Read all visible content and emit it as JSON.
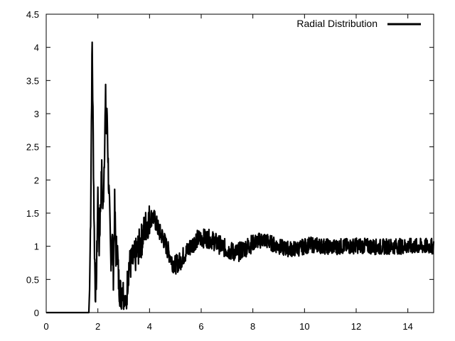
{
  "chart_data": {
    "type": "line",
    "title": "",
    "xlabel": "",
    "ylabel": "",
    "xlim": [
      0,
      15
    ],
    "ylim": [
      0,
      4.5
    ],
    "x_ticks": [
      0,
      2,
      4,
      6,
      8,
      10,
      12,
      14
    ],
    "y_ticks": [
      0,
      0.5,
      1,
      1.5,
      2,
      2.5,
      3,
      3.5,
      4,
      4.5
    ],
    "x_tick_labels": [
      "0",
      "2",
      "4",
      "6",
      "8",
      "10",
      "12",
      "14"
    ],
    "y_tick_labels": [
      "0",
      "0.5",
      "1",
      "1.5",
      "2",
      "2.5",
      "3",
      "3.5",
      "4",
      "4.5"
    ],
    "grid": false,
    "legend_position": "top-right",
    "series": [
      {
        "name": "Radial Distribution",
        "color": "#000000",
        "x": [
          0,
          1.0,
          1.65,
          1.68,
          1.72,
          1.76,
          1.78,
          1.82,
          1.86,
          1.9,
          1.95,
          2.0,
          2.05,
          2.1,
          2.15,
          2.2,
          2.25,
          2.3,
          2.33,
          2.36,
          2.4,
          2.45,
          2.5,
          2.55,
          2.6,
          2.65,
          2.7,
          2.75,
          2.8,
          2.85,
          2.9,
          2.95,
          3.0,
          3.05,
          3.1,
          3.15,
          3.2,
          3.3,
          3.4,
          3.5,
          3.6,
          3.7,
          3.8,
          3.9,
          4.0,
          4.1,
          4.2,
          4.3,
          4.4,
          4.5,
          4.6,
          4.7,
          4.8,
          4.9,
          5.0,
          5.1,
          5.2,
          5.3,
          5.4,
          5.6,
          5.8,
          6.0,
          6.2,
          6.4,
          6.6,
          6.8,
          7.0,
          7.2,
          7.4,
          7.6,
          7.8,
          8.0,
          8.2,
          8.4,
          8.6,
          8.8,
          9.0,
          9.2,
          9.4,
          9.6,
          9.8,
          10.0,
          10.2,
          10.4,
          10.6,
          10.8,
          11.0,
          11.2,
          11.4,
          11.6,
          11.8,
          12.0,
          12.2,
          12.4,
          12.6,
          12.8,
          13.0,
          13.2,
          13.4,
          13.6,
          13.8,
          14.0,
          14.2,
          14.4,
          14.6,
          14.8,
          15.0
        ],
        "y": [
          0,
          0,
          0,
          0.35,
          1.5,
          3.35,
          4.03,
          2.6,
          1.2,
          0.35,
          0.6,
          1.8,
          1.0,
          1.6,
          2.1,
          1.5,
          2.4,
          3.2,
          2.7,
          3.0,
          2.2,
          1.5,
          0.8,
          1.2,
          0.6,
          1.6,
          0.9,
          1.0,
          0.5,
          0.35,
          0.25,
          0.45,
          0.2,
          0.15,
          0.1,
          0.5,
          0.7,
          0.75,
          0.8,
          0.9,
          1.0,
          1.1,
          1.25,
          1.35,
          1.4,
          1.45,
          1.4,
          1.3,
          1.2,
          1.15,
          1.05,
          0.95,
          0.85,
          0.75,
          0.72,
          0.75,
          0.78,
          0.85,
          0.9,
          1.0,
          1.1,
          1.12,
          1.12,
          1.1,
          1.05,
          1.0,
          0.95,
          0.92,
          0.9,
          0.95,
          1.0,
          1.05,
          1.08,
          1.1,
          1.07,
          1.03,
          1.0,
          0.97,
          0.96,
          0.96,
          0.97,
          1.0,
          1.02,
          1.02,
          1.01,
          1.0,
          0.99,
          0.99,
          1.0,
          1.0,
          1.0,
          1.01,
          1.01,
          1.0,
          1.0,
          0.99,
          0.99,
          1.0,
          1.0,
          1.0,
          1.0,
          1.0,
          1.0,
          1.0,
          1.0,
          1.0,
          1.0
        ],
        "noise_amplitude": 0.12
      }
    ]
  }
}
